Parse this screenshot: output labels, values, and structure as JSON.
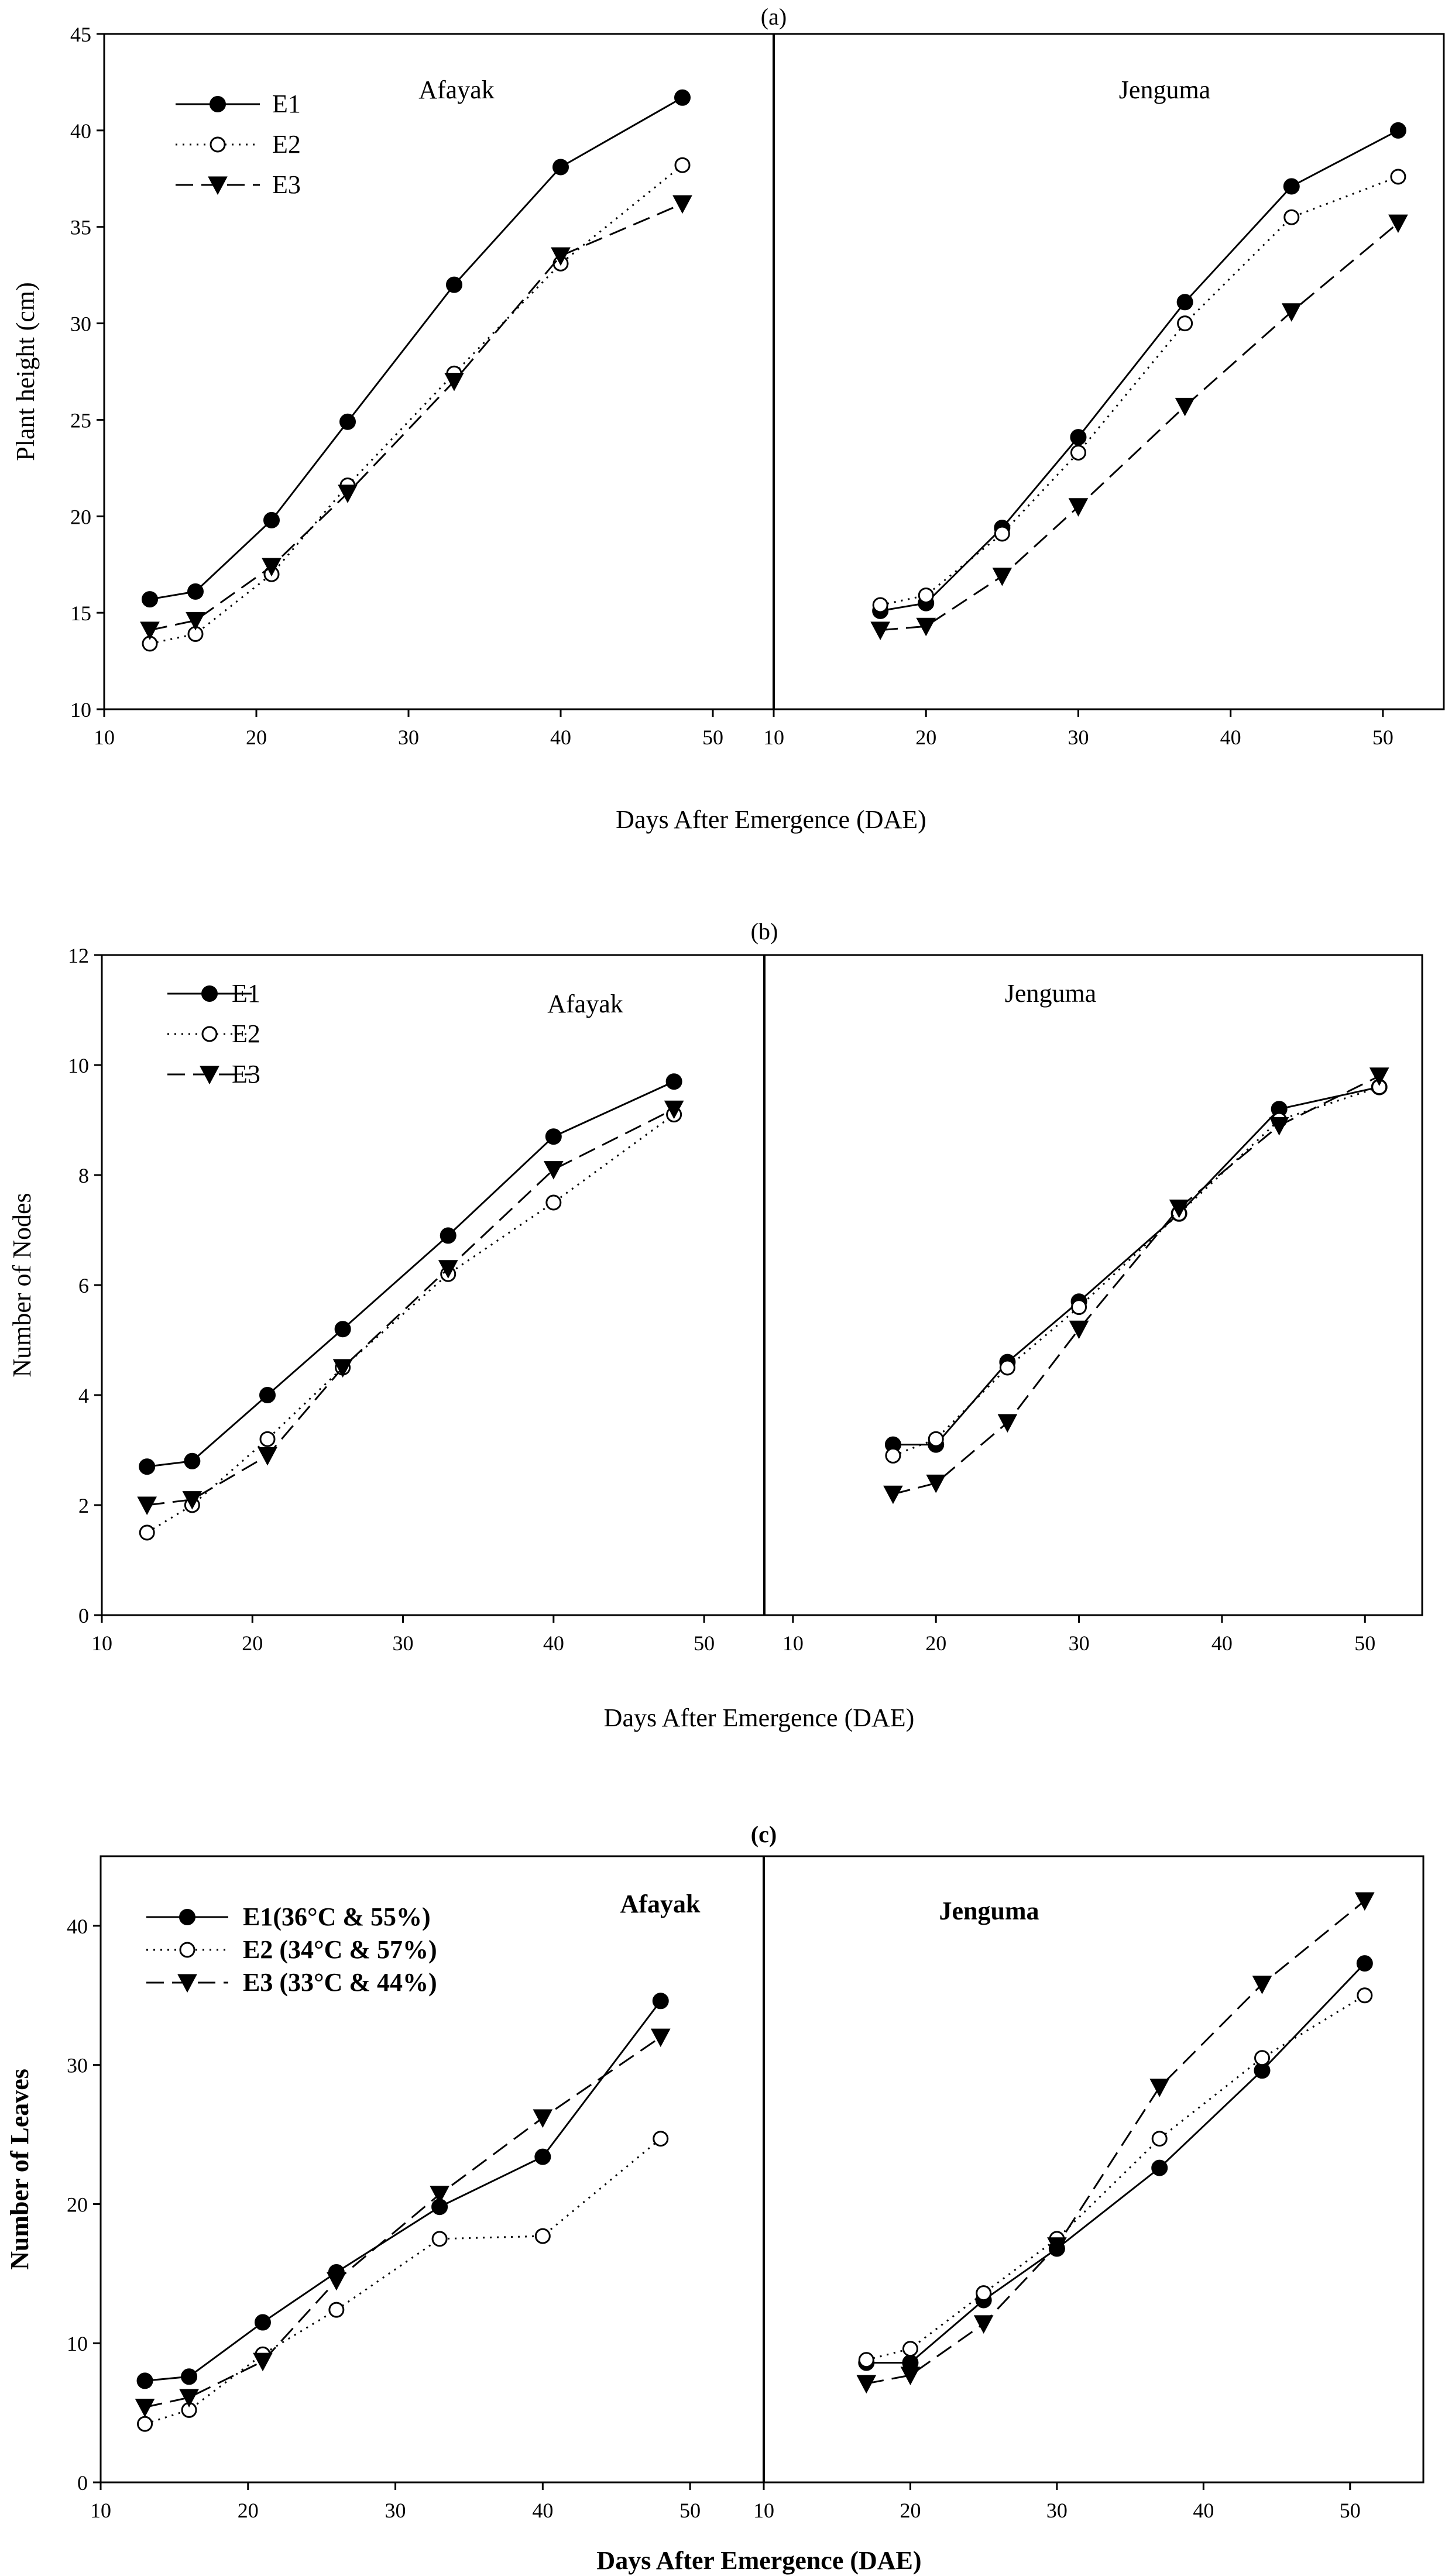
{
  "chart_data": [
    {
      "type": "line",
      "title": "(a)",
      "xlabel": "Days After Emergence (DAE)",
      "ylabel": "Plant height (cm)",
      "ylim": [
        10,
        45
      ],
      "yticks": [
        "10",
        "15",
        "20",
        "25",
        "30",
        "35",
        "40",
        "45"
      ],
      "xticks": [
        "10",
        "20",
        "30",
        "40",
        "50"
      ],
      "legend": [
        "E1",
        "E2",
        "E3"
      ],
      "panels": [
        {
          "name": "Afayak",
          "xlim": [
            10,
            54
          ],
          "x": [
            13,
            16,
            21,
            26,
            33,
            40,
            48
          ],
          "series": [
            {
              "name": "E1",
              "values": [
                15.7,
                16.1,
                19.8,
                24.9,
                32.0,
                38.1,
                41.7
              ]
            },
            {
              "name": "E2",
              "values": [
                13.4,
                13.9,
                17.0,
                21.6,
                27.4,
                33.1,
                38.2
              ]
            },
            {
              "name": "E3",
              "values": [
                14.1,
                14.6,
                17.4,
                21.2,
                27.0,
                33.5,
                36.2
              ]
            }
          ]
        },
        {
          "name": "Jenguma",
          "xlim": [
            10,
            54
          ],
          "x": [
            17,
            20,
            25,
            30,
            37,
            44,
            51
          ],
          "series": [
            {
              "name": "E1",
              "values": [
                15.1,
                15.5,
                19.4,
                24.1,
                31.1,
                37.1,
                40.0
              ]
            },
            {
              "name": "E2",
              "values": [
                15.4,
                15.9,
                19.1,
                23.3,
                30.0,
                35.5,
                37.6
              ]
            },
            {
              "name": "E3",
              "values": [
                14.1,
                14.3,
                16.9,
                20.5,
                25.7,
                30.6,
                35.2
              ]
            }
          ]
        }
      ]
    },
    {
      "type": "line",
      "title": "(b)",
      "xlabel": "Days After Emergence (DAE)",
      "ylabel": "Number of Nodes",
      "ylim": [
        0,
        12
      ],
      "yticks": [
        "0",
        "2",
        "4",
        "6",
        "8",
        "10",
        "12"
      ],
      "xticks": [
        "10",
        "20",
        "30",
        "40",
        "50"
      ],
      "legend": [
        "E1",
        "E2",
        "E3"
      ],
      "panels": [
        {
          "name": "Afayak",
          "xlim": [
            10,
            54
          ],
          "x": [
            13,
            16,
            21,
            26,
            33,
            40,
            48
          ],
          "series": [
            {
              "name": "E1",
              "values": [
                2.7,
                2.8,
                4.0,
                5.2,
                6.9,
                8.7,
                9.7
              ]
            },
            {
              "name": "E2",
              "values": [
                1.5,
                2.0,
                3.2,
                4.5,
                6.2,
                7.5,
                9.1
              ]
            },
            {
              "name": "E3",
              "values": [
                2.0,
                2.1,
                2.9,
                4.5,
                6.3,
                8.1,
                9.2
              ]
            }
          ]
        },
        {
          "name": "Jenguma",
          "xlim": [
            8,
            54
          ],
          "x": [
            17,
            20,
            25,
            30,
            37,
            44,
            51
          ],
          "series": [
            {
              "name": "E1",
              "values": [
                3.1,
                3.1,
                4.6,
                5.7,
                7.3,
                9.2,
                9.6
              ]
            },
            {
              "name": "E2",
              "values": [
                2.9,
                3.2,
                4.5,
                5.6,
                7.3,
                9.0,
                9.6
              ]
            },
            {
              "name": "E3",
              "values": [
                2.2,
                2.4,
                3.5,
                5.2,
                7.4,
                8.9,
                9.8
              ]
            }
          ]
        }
      ]
    },
    {
      "type": "line",
      "title": "(c)",
      "xlabel": "Days After Emergence (DAE)",
      "ylabel": "Number of  Leaves",
      "ylim": [
        0,
        45
      ],
      "yticks": [
        "0",
        "10",
        "20",
        "30",
        "40"
      ],
      "xticks": [
        "10",
        "20",
        "30",
        "40",
        "50"
      ],
      "legend": [
        "E1(36°C & 55%)",
        "E2 (34°C & 57%)",
        "E3 (33°C & 44%)"
      ],
      "panels": [
        {
          "name": "Afayak",
          "xlim": [
            10,
            55
          ],
          "x": [
            13,
            16,
            21,
            26,
            33,
            40,
            48
          ],
          "series": [
            {
              "name": "E1",
              "values": [
                7.3,
                7.6,
                11.5,
                15.1,
                19.8,
                23.4,
                34.6
              ]
            },
            {
              "name": "E2",
              "values": [
                4.2,
                5.2,
                9.2,
                12.4,
                17.5,
                17.7,
                24.7
              ]
            },
            {
              "name": "E3",
              "values": [
                5.4,
                6.1,
                8.7,
                14.5,
                20.7,
                26.2,
                32.0
              ]
            }
          ]
        },
        {
          "name": "Jenguma",
          "xlim": [
            10,
            55
          ],
          "x": [
            17,
            20,
            25,
            30,
            37,
            44,
            51
          ],
          "series": [
            {
              "name": "E1",
              "values": [
                8.6,
                8.6,
                13.1,
                16.8,
                22.6,
                29.6,
                37.3
              ]
            },
            {
              "name": "E2",
              "values": [
                8.8,
                9.6,
                13.6,
                17.5,
                24.7,
                30.5,
                35.0
              ]
            },
            {
              "name": "E3",
              "values": [
                7.1,
                7.7,
                11.4,
                17.0,
                28.4,
                35.8,
                41.8
              ]
            }
          ]
        }
      ]
    }
  ]
}
